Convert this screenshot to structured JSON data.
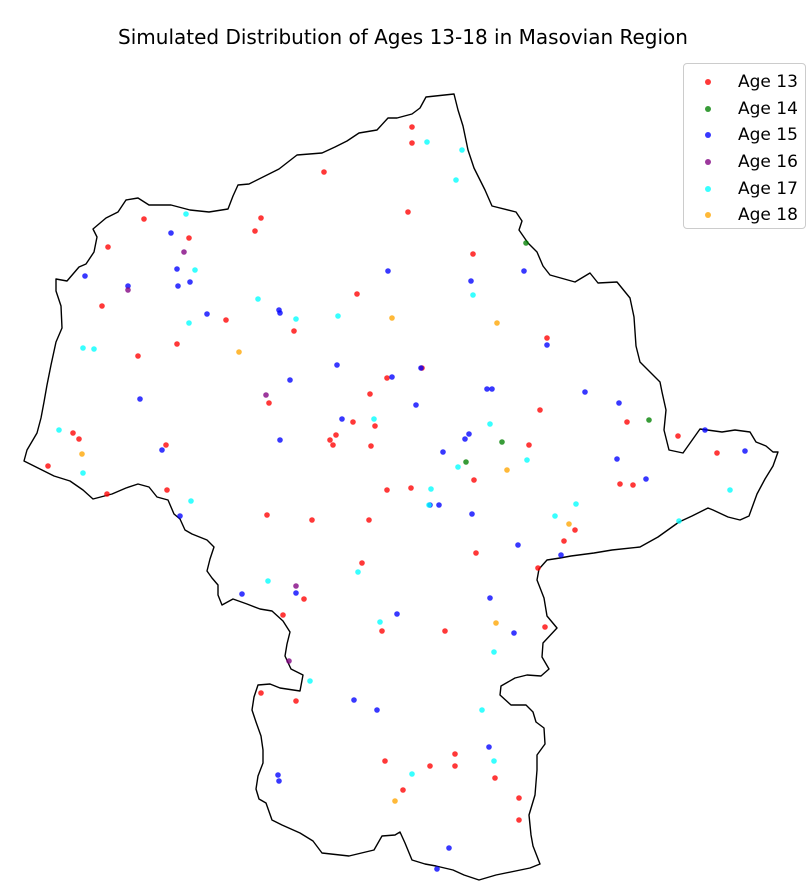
{
  "chart_data": {
    "type": "scatter",
    "title": "Simulated Distribution of Ages 13-18 in Masovian Region",
    "legend_position": "top-right",
    "axes_visible": false,
    "series": [
      {
        "name": "Age 13",
        "color": "#ff0000",
        "points": [
          [
            412,
            127
          ],
          [
            412,
            143
          ],
          [
            324,
            172
          ],
          [
            144,
            219
          ],
          [
            261,
            218
          ],
          [
            408,
            212
          ],
          [
            189,
            238
          ],
          [
            255,
            231
          ],
          [
            108,
            247
          ],
          [
            473,
            254
          ],
          [
            102,
            306
          ],
          [
            357,
            294
          ],
          [
            226,
            320
          ],
          [
            294,
            331
          ],
          [
            138,
            356
          ],
          [
            177,
            344
          ],
          [
            547,
            338
          ],
          [
            422,
            368
          ],
          [
            387,
            378
          ],
          [
            370,
            394
          ],
          [
            269,
            403
          ],
          [
            540,
            410
          ],
          [
            627,
            422
          ],
          [
            353,
            422
          ],
          [
            375,
            426
          ],
          [
            336,
            435
          ],
          [
            330,
            440
          ],
          [
            333,
            445
          ],
          [
            371,
            446
          ],
          [
            166,
            445
          ],
          [
            529,
            445
          ],
          [
            678,
            436
          ],
          [
            717,
            453
          ],
          [
            73,
            433
          ],
          [
            79,
            439
          ],
          [
            48,
            466
          ],
          [
            474,
            480
          ],
          [
            620,
            484
          ],
          [
            633,
            485
          ],
          [
            411,
            488
          ],
          [
            387,
            490
          ],
          [
            167,
            490
          ],
          [
            107,
            494
          ],
          [
            267,
            515
          ],
          [
            312,
            520
          ],
          [
            369,
            520
          ],
          [
            575,
            530
          ],
          [
            564,
            541
          ],
          [
            476,
            553
          ],
          [
            538,
            568
          ],
          [
            362,
            563
          ],
          [
            304,
            599
          ],
          [
            283,
            615
          ],
          [
            545,
            627
          ],
          [
            382,
            631
          ],
          [
            445,
            631
          ],
          [
            261,
            693
          ],
          [
            296,
            701
          ],
          [
            455,
            754
          ],
          [
            385,
            761
          ],
          [
            430,
            766
          ],
          [
            455,
            766
          ],
          [
            495,
            778
          ],
          [
            403,
            790
          ],
          [
            519,
            798
          ],
          [
            519,
            820
          ]
        ]
      },
      {
        "name": "Age 14",
        "color": "#008000",
        "points": [
          [
            526,
            243
          ],
          [
            649,
            420
          ],
          [
            502,
            442
          ],
          [
            466,
            462
          ]
        ]
      },
      {
        "name": "Age 15",
        "color": "#0000ff",
        "points": [
          [
            171,
            233
          ],
          [
            388,
            271
          ],
          [
            524,
            271
          ],
          [
            177,
            269
          ],
          [
            85,
            276
          ],
          [
            471,
            281
          ],
          [
            190,
            282
          ],
          [
            128,
            286
          ],
          [
            178,
            286
          ],
          [
            279,
            310
          ],
          [
            280,
            313
          ],
          [
            207,
            314
          ],
          [
            547,
            345
          ],
          [
            337,
            365
          ],
          [
            421,
            368
          ],
          [
            392,
            377
          ],
          [
            290,
            380
          ],
          [
            487,
            389
          ],
          [
            492,
            389
          ],
          [
            585,
            392
          ],
          [
            140,
            399
          ],
          [
            416,
            405
          ],
          [
            619,
            403
          ],
          [
            342,
            419
          ],
          [
            469,
            434
          ],
          [
            465,
            439
          ],
          [
            280,
            440
          ],
          [
            705,
            430
          ],
          [
            162,
            450
          ],
          [
            745,
            451
          ],
          [
            443,
            452
          ],
          [
            617,
            459
          ],
          [
            646,
            479
          ],
          [
            430,
            505
          ],
          [
            439,
            505
          ],
          [
            472,
            514
          ],
          [
            180,
            516
          ],
          [
            518,
            545
          ],
          [
            561,
            555
          ],
          [
            296,
            593
          ],
          [
            242,
            594
          ],
          [
            490,
            598
          ],
          [
            397,
            614
          ],
          [
            514,
            633
          ],
          [
            354,
            700
          ],
          [
            377,
            710
          ],
          [
            489,
            747
          ],
          [
            278,
            775
          ],
          [
            279,
            781
          ],
          [
            449,
            848
          ],
          [
            437,
            869
          ]
        ]
      },
      {
        "name": "Age 16",
        "color": "#800080",
        "points": [
          [
            184,
            252
          ],
          [
            128,
            290
          ],
          [
            266,
            395
          ],
          [
            296,
            586
          ],
          [
            289,
            661
          ]
        ]
      },
      {
        "name": "Age 17",
        "color": "#00ffff",
        "points": [
          [
            427,
            142
          ],
          [
            462,
            150
          ],
          [
            456,
            180
          ],
          [
            186,
            214
          ],
          [
            195,
            270
          ],
          [
            473,
            295
          ],
          [
            258,
            299
          ],
          [
            338,
            316
          ],
          [
            296,
            319
          ],
          [
            189,
            323
          ],
          [
            83,
            348
          ],
          [
            94,
            349
          ],
          [
            374,
            419
          ],
          [
            59,
            430
          ],
          [
            490,
            424
          ],
          [
            458,
            467
          ],
          [
            527,
            460
          ],
          [
            83,
            473
          ],
          [
            431,
            489
          ],
          [
            730,
            490
          ],
          [
            191,
            501
          ],
          [
            429,
            505
          ],
          [
            576,
            504
          ],
          [
            555,
            516
          ],
          [
            679,
            521
          ],
          [
            358,
            572
          ],
          [
            268,
            581
          ],
          [
            380,
            622
          ],
          [
            494,
            652
          ],
          [
            310,
            681
          ],
          [
            482,
            710
          ],
          [
            494,
            761
          ],
          [
            412,
            774
          ]
        ]
      },
      {
        "name": "Age 18",
        "color": "#ffa500",
        "points": [
          [
            392,
            318
          ],
          [
            497,
            323
          ],
          [
            239,
            352
          ],
          [
            82,
            454
          ],
          [
            507,
            470
          ],
          [
            569,
            524
          ],
          [
            496,
            623
          ],
          [
            395,
            801
          ]
        ]
      }
    ]
  }
}
